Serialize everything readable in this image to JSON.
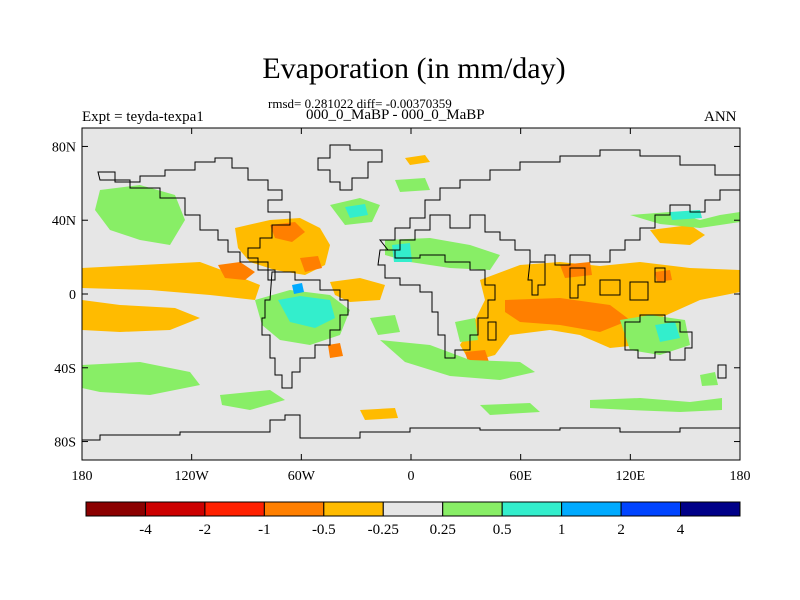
{
  "title": "Evaporation (in mm/day)",
  "stats_line": "rmsd= 0.281022 diff= -0.00370359",
  "subtitle": "000_0_MaBP - 000_0_MaBP",
  "left_label": "Expt = teyda-texpa1",
  "right_label": "ANN",
  "axes": {
    "lat_ticks": [
      "80N",
      "40N",
      "0",
      "40S",
      "80S"
    ],
    "lon_ticks": [
      "180",
      "120W",
      "60W",
      "0",
      "60E",
      "120E",
      "180"
    ]
  },
  "colorbar": {
    "colors": [
      "#8B0000",
      "#CC0000",
      "#FF2000",
      "#FF7F00",
      "#FFBB00",
      "#E6E6E6",
      "#88EE66",
      "#33EECC",
      "#00AAFF",
      "#0044FF",
      "#000088"
    ],
    "labels": [
      "-4",
      "-2",
      "-1",
      "-0.5",
      "-0.25",
      "0.25",
      "0.5",
      "1",
      "2",
      "4"
    ]
  },
  "chart_data": {
    "type": "map",
    "title": "Evaporation (in mm/day)",
    "lon_range": [
      -180,
      180
    ],
    "lat_range": [
      -90,
      90
    ],
    "background_color": "#E6E6E6",
    "levels": [
      -4,
      -2,
      -1,
      -0.5,
      -0.25,
      0.25,
      0.5,
      1,
      2,
      4
    ],
    "regions": [
      {
        "lat": 10,
        "lon": -145,
        "value": -0.3
      },
      {
        "lat": 5,
        "lon": -110,
        "value": -0.4
      },
      {
        "lat": -15,
        "lon": -130,
        "value": -0.3
      },
      {
        "lat": 12,
        "lon": -90,
        "value": -0.6
      },
      {
        "lat": 30,
        "lon": -60,
        "value": -0.6
      },
      {
        "lat": 8,
        "lon": -35,
        "value": -0.35
      },
      {
        "lat": 35,
        "lon": -150,
        "value": 0.3
      },
      {
        "lat": -45,
        "lon": -140,
        "value": 0.3
      },
      {
        "lat": -40,
        "lon": 60,
        "value": 0.35
      },
      {
        "lat": -15,
        "lon": 70,
        "value": -0.3
      },
      {
        "lat": -10,
        "lon": 90,
        "value": -0.6
      },
      {
        "lat": 15,
        "lon": 140,
        "value": -0.3
      },
      {
        "lat": 40,
        "lon": 130,
        "value": 0.3
      },
      {
        "lat": 20,
        "lon": 25,
        "value": 0.5
      },
      {
        "lat": -10,
        "lon": -55,
        "value": 0.6
      },
      {
        "lat": -30,
        "lon": 130,
        "value": 0.35
      }
    ]
  }
}
